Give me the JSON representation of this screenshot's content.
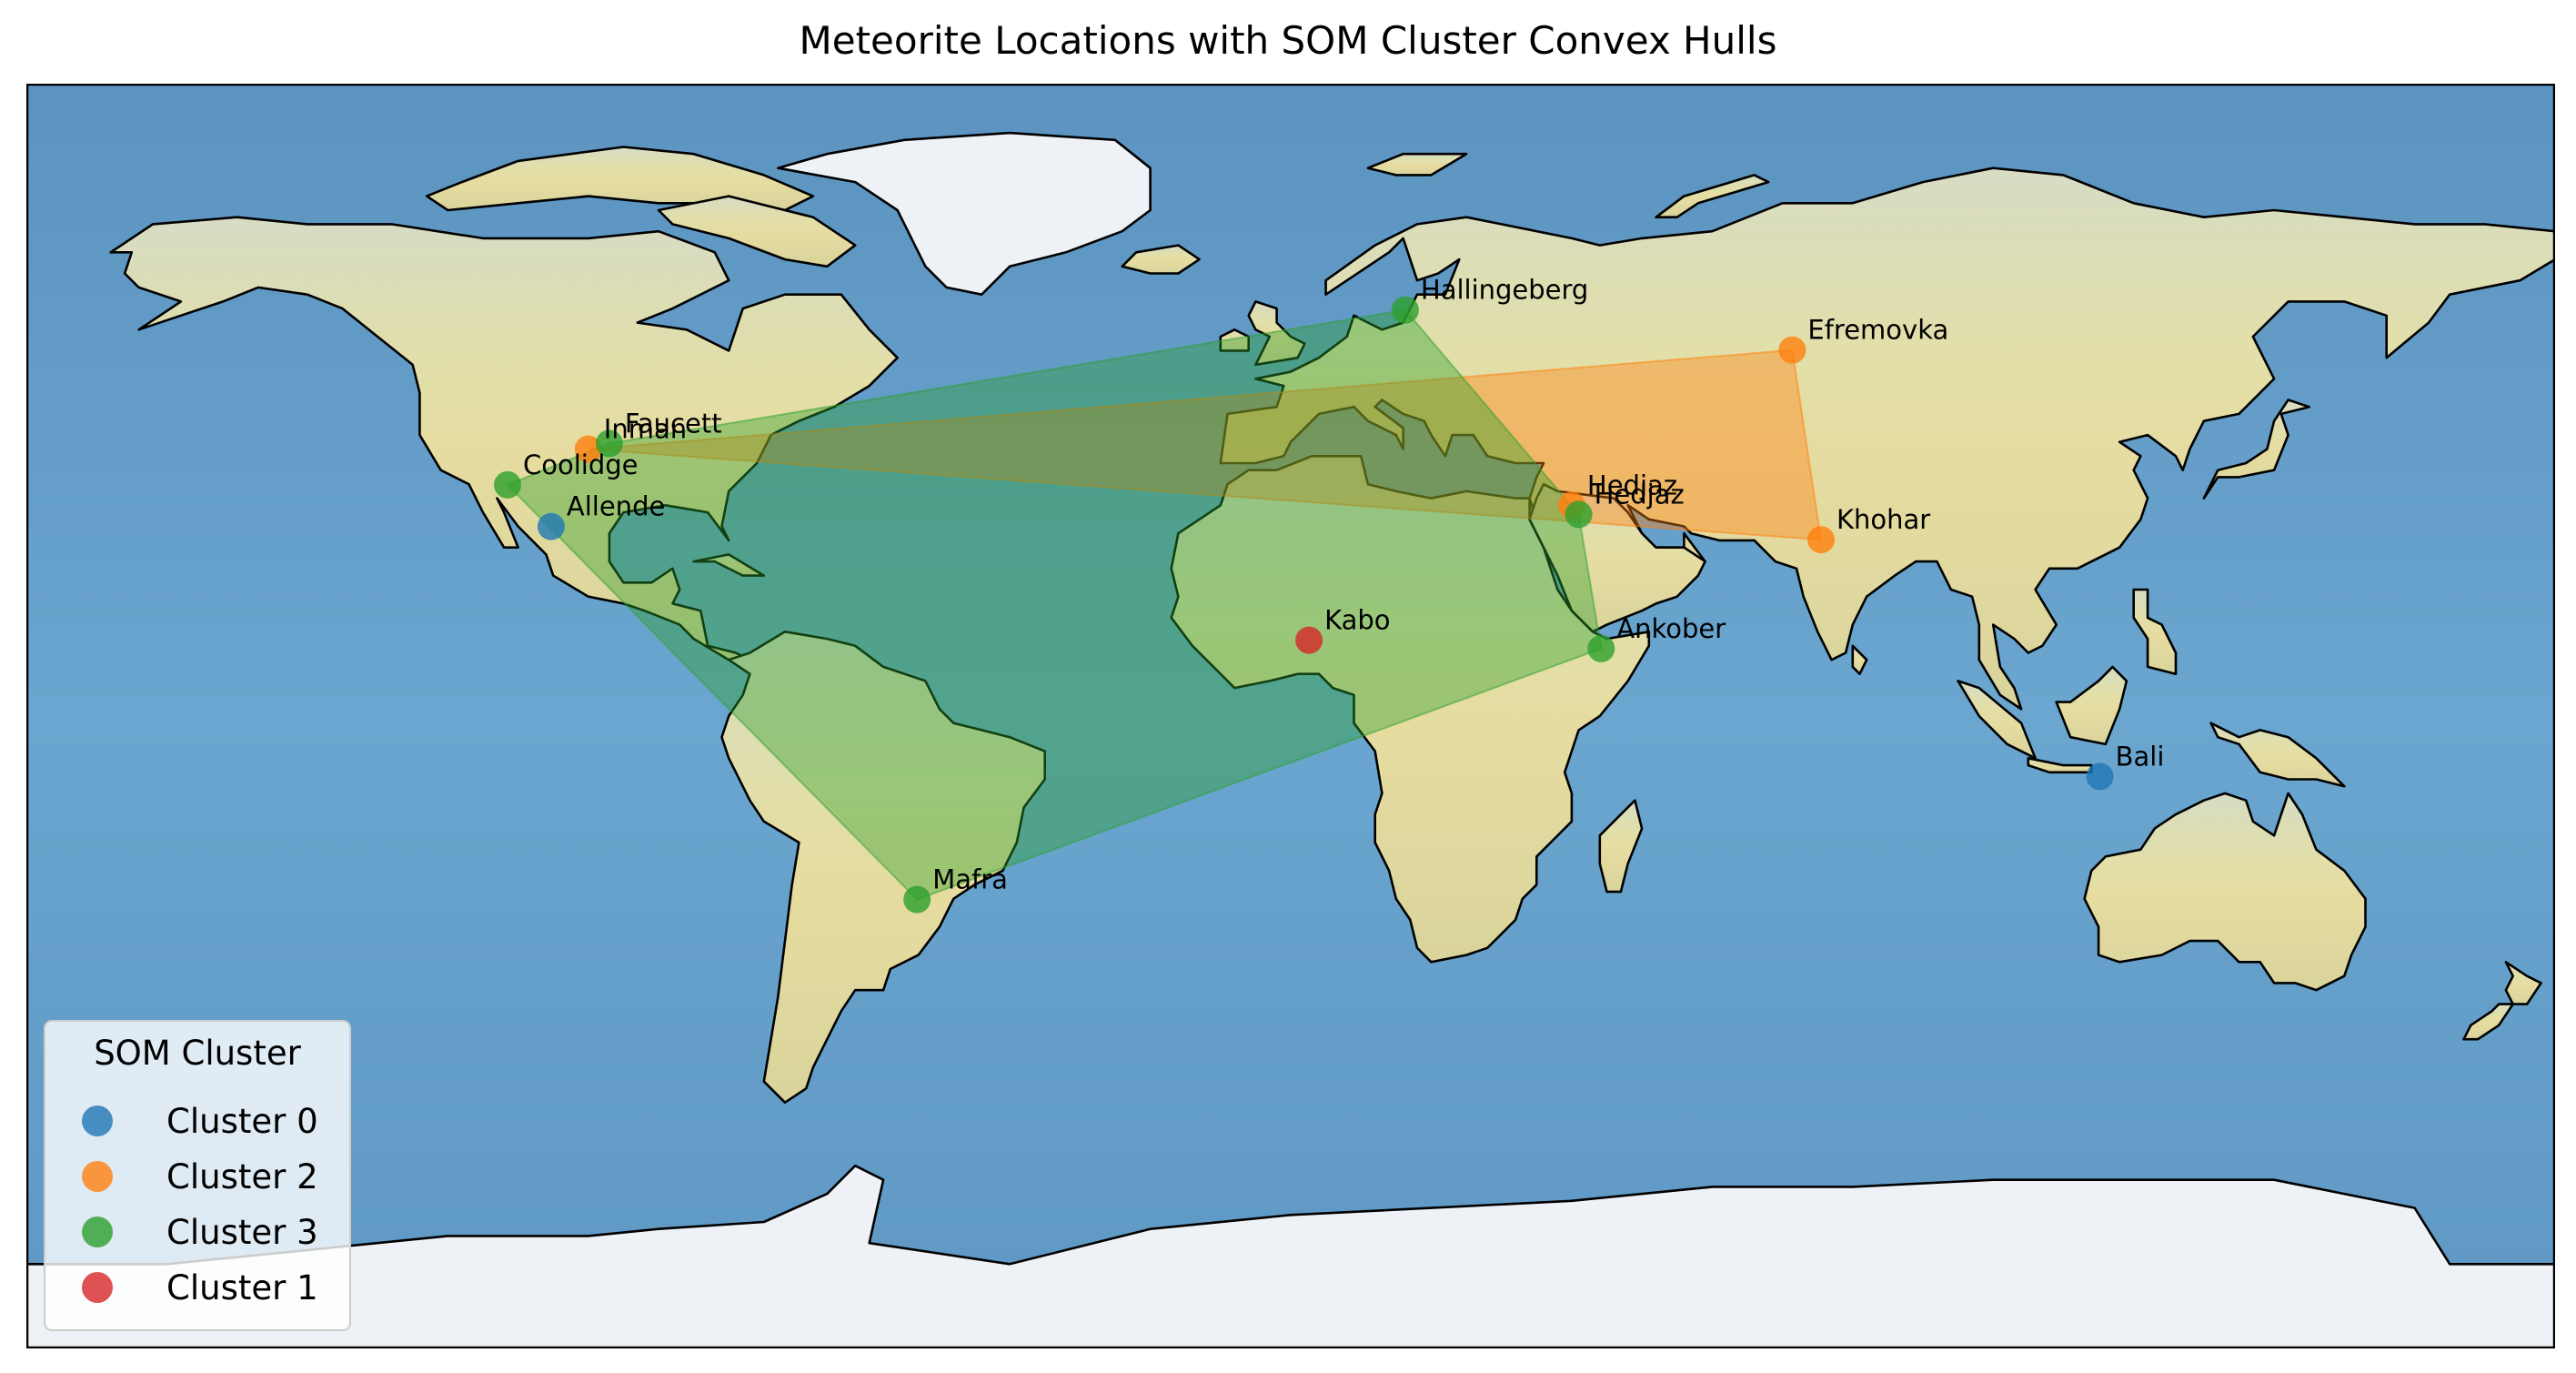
{
  "title": "Meteorite Locations with SOM Cluster Convex Hulls",
  "map": {
    "projection": "PlateCarree",
    "extent": {
      "lon": [
        -180,
        180
      ],
      "lat": [
        -90,
        90
      ]
    },
    "background": "stock image (shaded relief)",
    "coastlines": true,
    "colors": {
      "ocean": "#5f9bc6",
      "land": "#d8d49a",
      "ice": "#eef2f6",
      "coast": "#000000"
    }
  },
  "clusters": [
    {
      "id": 0,
      "color": "#1f77b4"
    },
    {
      "id": 2,
      "color": "#ff7f0e"
    },
    {
      "id": 3,
      "color": "#2ca02c"
    },
    {
      "id": 1,
      "color": "#d62728"
    }
  ],
  "meteorites": [
    {
      "name": "Allende",
      "lon": -105.3,
      "lat": 26.97,
      "cluster": 0
    },
    {
      "name": "Bali",
      "lon": 115.2,
      "lat": -8.6,
      "cluster": 0
    },
    {
      "name": "Inman",
      "lon": -100.0,
      "lat": 38.0,
      "cluster": 2
    },
    {
      "name": "Efremovka",
      "lon": 71.4,
      "lat": 52.1,
      "cluster": 2
    },
    {
      "name": "Khohar",
      "lon": 75.5,
      "lat": 25.1,
      "cluster": 2
    },
    {
      "name": "Hedjaz",
      "lon": 40.0,
      "lat": 30.0,
      "cluster": 2
    },
    {
      "name": "Faucett",
      "lon": -97.0,
      "lat": 38.8,
      "cluster": 3
    },
    {
      "name": "Coolidge",
      "lon": -111.5,
      "lat": 32.9,
      "cluster": 3
    },
    {
      "name": "Hallingeberg",
      "lon": 16.3,
      "lat": 57.8,
      "cluster": 3
    },
    {
      "name": "Hedjaz",
      "lon": 41.0,
      "lat": 28.7,
      "cluster": 3
    },
    {
      "name": "Ankober",
      "lon": 44.2,
      "lat": 9.6,
      "cluster": 3
    },
    {
      "name": "Mafra",
      "lon": -53.2,
      "lat": -26.1,
      "cluster": 3
    },
    {
      "name": "Kabo",
      "lon": 2.6,
      "lat": 10.8,
      "cluster": 1
    }
  ],
  "legend": {
    "title": "SOM Cluster",
    "location": "lower left",
    "entries": [
      {
        "label": "Cluster 0",
        "color": "#1f77b4"
      },
      {
        "label": "Cluster 2",
        "color": "#ff7f0e"
      },
      {
        "label": "Cluster 3",
        "color": "#2ca02c"
      },
      {
        "label": "Cluster 1",
        "color": "#d62728"
      }
    ]
  }
}
